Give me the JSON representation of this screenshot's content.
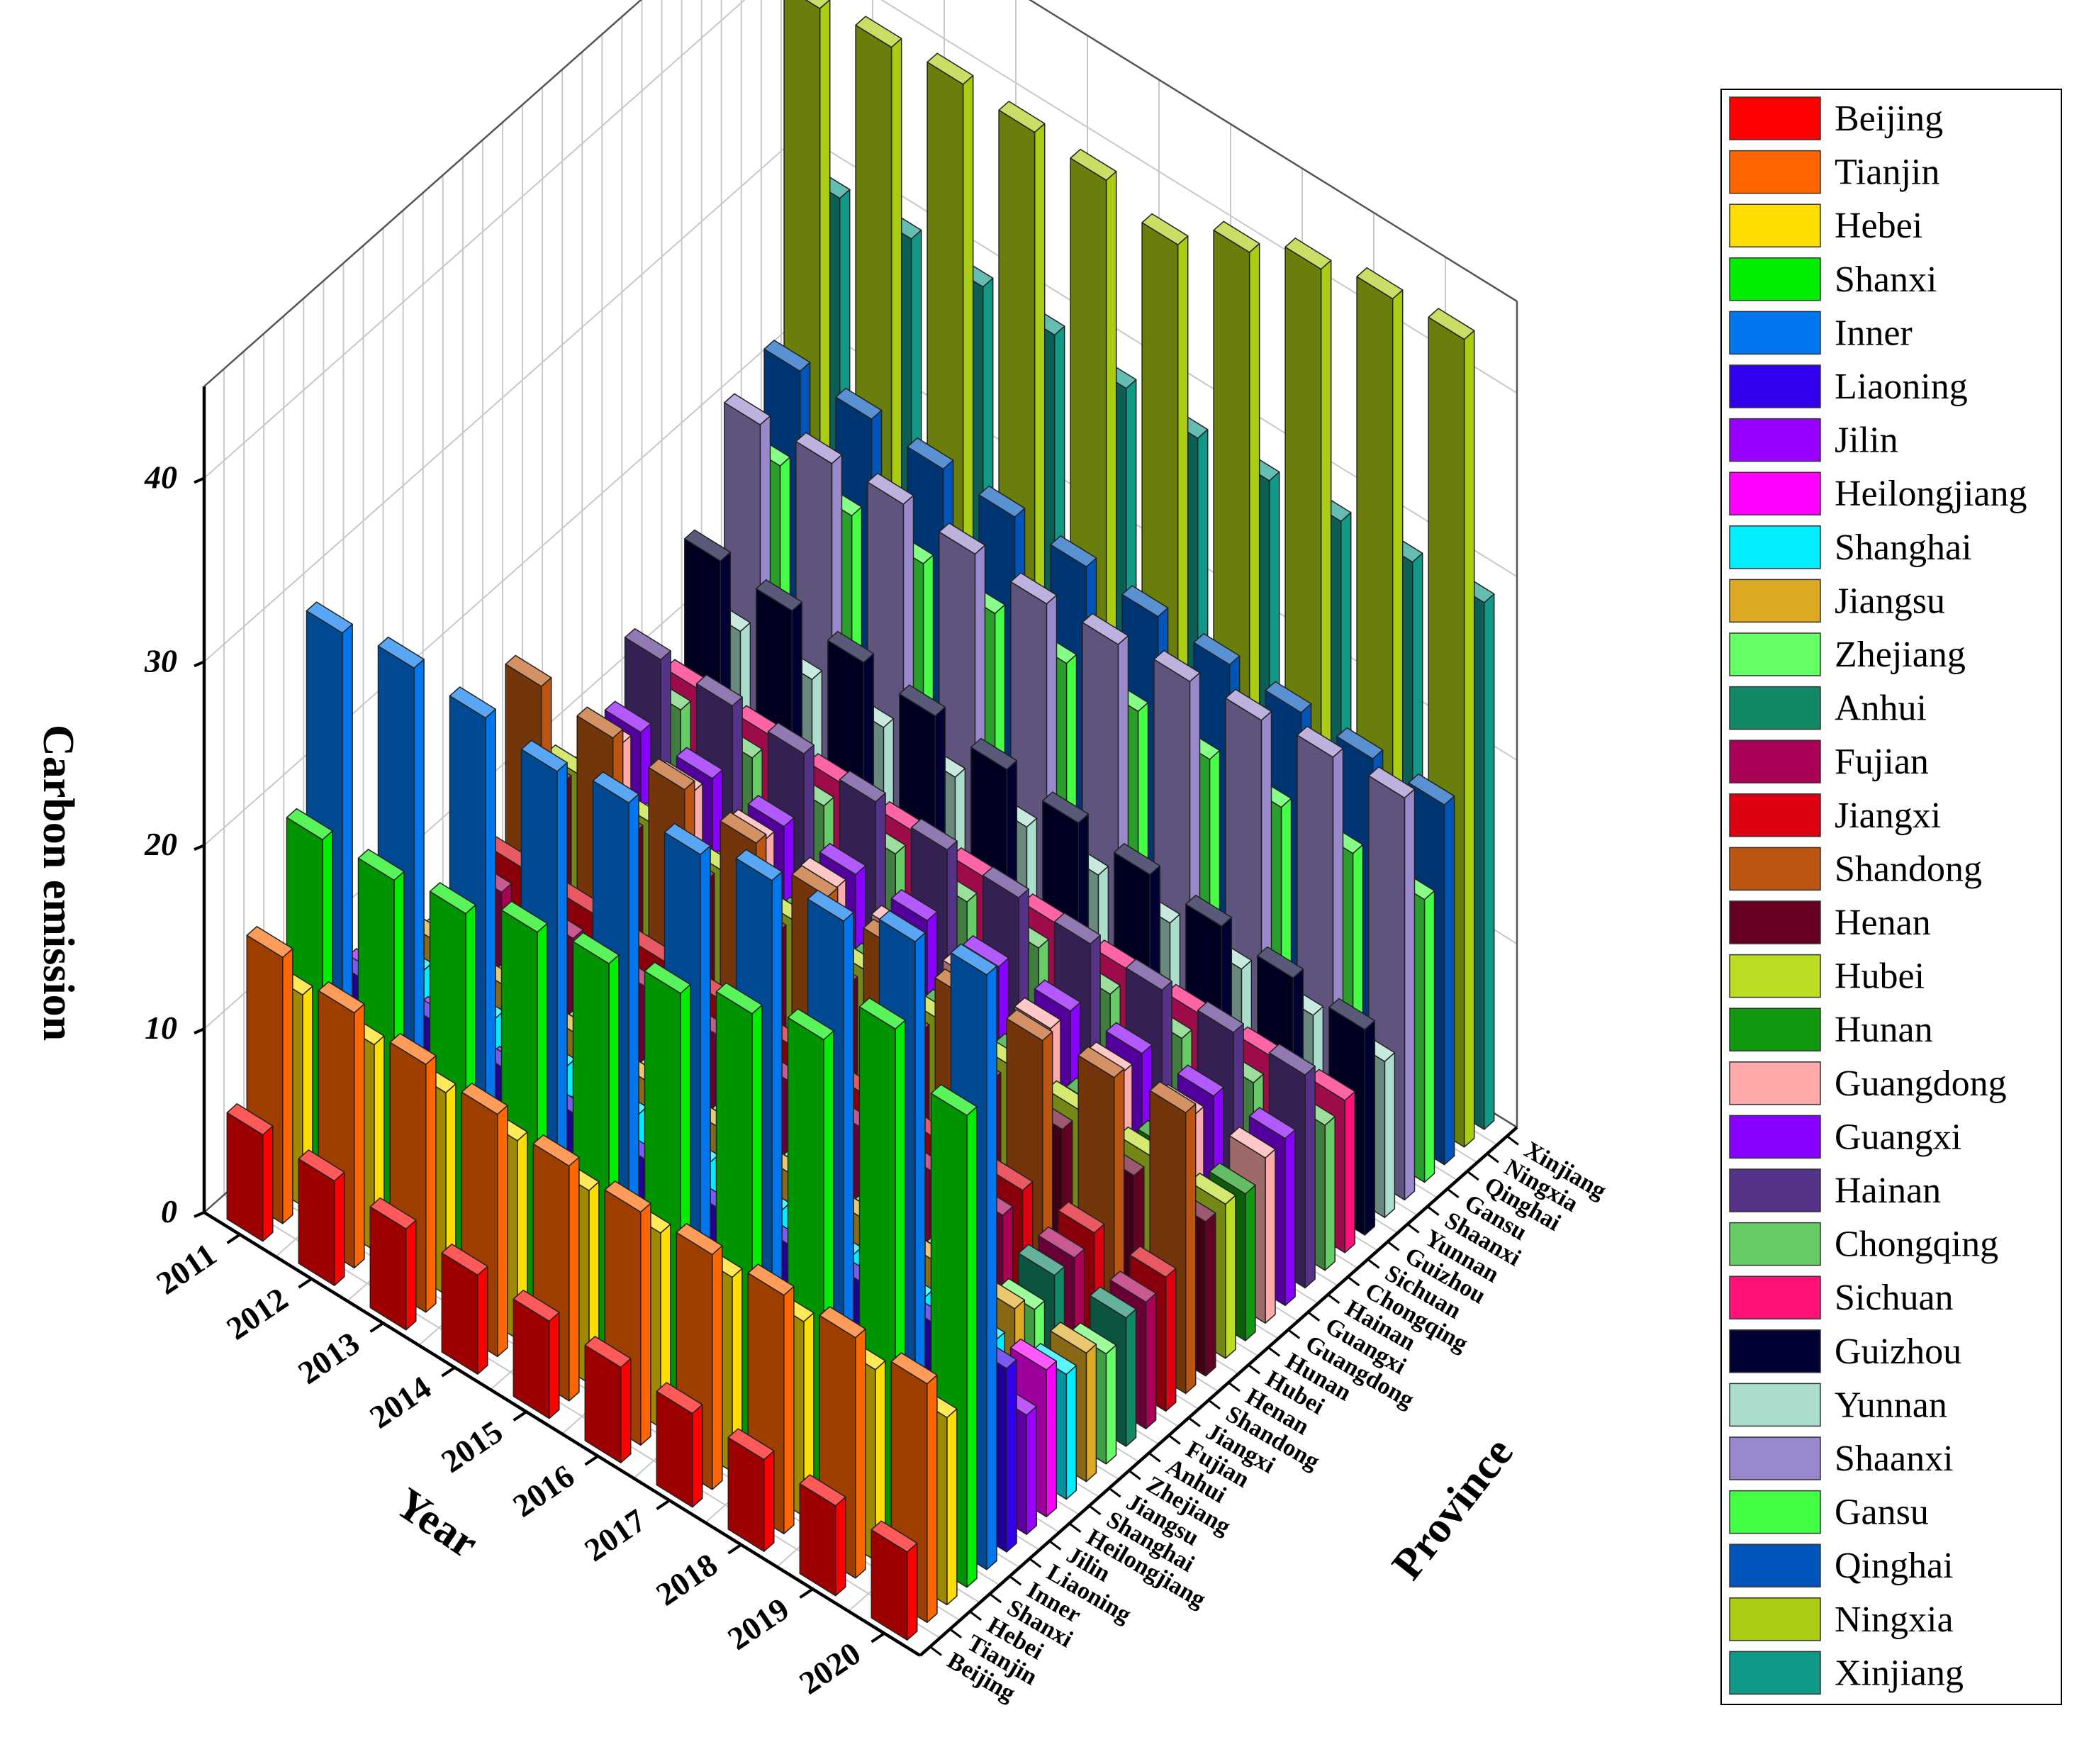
{
  "chart_data": {
    "type": "bar3d",
    "ylabel": "Carbon emission",
    "xlabel": "Year",
    "zlabel": "Province",
    "ylim": [
      0,
      45
    ],
    "yticks": [
      0,
      10,
      20,
      30,
      40
    ],
    "grid": true,
    "legend_position": "right",
    "years": [
      "2011",
      "2012",
      "2013",
      "2014",
      "2015",
      "2016",
      "2017",
      "2018",
      "2019",
      "2020"
    ],
    "provinces": [
      "Beijing",
      "Tianjin",
      "Hebei",
      "Shanxi",
      "Inner",
      "Liaoning",
      "Jilin",
      "Heilongjiang",
      "Shanghai",
      "Jiangsu",
      "Zhejiang",
      "Anhui",
      "Fujian",
      "Jiangxi",
      "Shandong",
      "Henan",
      "Hubei",
      "Hunan",
      "Guangdong",
      "Guangxi",
      "Hainan",
      "Chongqing",
      "Sichuan",
      "Guizhou",
      "Yunnan",
      "Shaanxi",
      "Gansu",
      "Qinghai",
      "Ningxia",
      "Xinjiang"
    ],
    "colors": [
      "#ff0000",
      "#ff6600",
      "#ffdd00",
      "#00ee00",
      "#0077ee",
      "#3300ee",
      "#9900ff",
      "#ff00ff",
      "#00eeff",
      "#ddaa22",
      "#66ff66",
      "#118866",
      "#aa0055",
      "#dd0011",
      "#bb5511",
      "#660022",
      "#bbdd22",
      "#119911",
      "#ffaaaa",
      "#8800ff",
      "#553388",
      "#66cc66",
      "#ff1177",
      "#000033",
      "#aaddcc",
      "#9988cc",
      "#44ff44",
      "#0055bb",
      "#aacc11",
      "#119988"
    ],
    "series": [
      {
        "name": "Beijing",
        "values": [
          5.8,
          5.7,
          5.5,
          5.4,
          5.3,
          5.2,
          5.1,
          5.0,
          4.9,
          4.8
        ]
      },
      {
        "name": "Tianjin",
        "values": [
          14.5,
          13.9,
          13.5,
          13.2,
          12.8,
          12.7,
          12.8,
          13.0,
          13.1,
          13.0
        ]
      },
      {
        "name": "Hebei",
        "values": [
          11.5,
          11.2,
          11.0,
          10.8,
          10.5,
          10.6,
          10.6,
          10.6,
          10.4,
          10.2
        ]
      },
      {
        "name": "Shanxi",
        "values": [
          19.0,
          19.2,
          19.8,
          21.2,
          21.9,
          22.7,
          24.0,
          25.0,
          28.0,
          25.7
        ]
      },
      {
        "name": "Inner",
        "values": [
          29.3,
          29.8,
          29.5,
          29.0,
          29.7,
          29.3,
          30.3,
          30.5,
          31.8,
          32.4
        ]
      },
      {
        "name": "Liaoning",
        "values": [
          9.5,
          9.6,
          9.4,
          9.3,
          9.2,
          9.0,
          9.4,
          9.8,
          10.0,
          10.0
        ]
      },
      {
        "name": "Jilin",
        "values": [
          8.5,
          8.3,
          8.0,
          7.7,
          7.4,
          7.1,
          6.9,
          6.8,
          6.6,
          6.5
        ]
      },
      {
        "name": "Heilongjiang",
        "values": [
          8.0,
          7.9,
          7.8,
          7.6,
          7.4,
          7.3,
          7.2,
          7.4,
          7.5,
          8.0
        ]
      },
      {
        "name": "Shanghai",
        "values": [
          7.0,
          6.8,
          6.6,
          6.4,
          6.2,
          6.0,
          6.0,
          6.1,
          6.2,
          6.8
        ]
      },
      {
        "name": "Jiangsu",
        "values": [
          7.5,
          7.4,
          7.2,
          7.0,
          6.9,
          6.8,
          6.8,
          6.9,
          7.0,
          7.0
        ]
      },
      {
        "name": "Zhejiang",
        "values": [
          6.6,
          6.5,
          6.4,
          6.2,
          6.1,
          6.0,
          6.0,
          6.1,
          6.0,
          6.0
        ]
      },
      {
        "name": "Anhui",
        "values": [
          7.3,
          7.2,
          7.1,
          7.0,
          6.9,
          6.8,
          6.8,
          6.9,
          6.9,
          7.0
        ]
      },
      {
        "name": "Fujian",
        "values": [
          7.5,
          7.4,
          7.2,
          7.0,
          6.9,
          6.8,
          6.8,
          6.8,
          6.9,
          6.9
        ]
      },
      {
        "name": "Jiangxi",
        "values": [
          7.9,
          7.8,
          7.6,
          7.4,
          7.3,
          7.1,
          7.1,
          7.2,
          7.3,
          7.3
        ]
      },
      {
        "name": "Shandong",
        "values": [
          16.8,
          16.4,
          16.0,
          15.5,
          15.0,
          14.5,
          14.2,
          14.4,
          14.8,
          15.3
        ]
      },
      {
        "name": "Henan",
        "values": [
          10.5,
          10.2,
          10.0,
          9.6,
          9.2,
          9.0,
          8.8,
          8.6,
          8.5,
          8.4
        ]
      },
      {
        "name": "Hubei",
        "values": [
          10.0,
          9.8,
          9.6,
          9.3,
          9.0,
          8.8,
          8.7,
          8.6,
          8.5,
          8.4
        ]
      },
      {
        "name": "Hunan",
        "values": [
          8.4,
          8.3,
          8.1,
          8.0,
          7.9,
          7.8,
          7.8,
          7.8,
          7.9,
          8.0
        ]
      },
      {
        "name": "Guangdong",
        "values": [
          9.8,
          9.6,
          9.4,
          9.2,
          9.0,
          8.9,
          8.8,
          8.8,
          8.9,
          9.0
        ]
      },
      {
        "name": "Guangxi",
        "values": [
          9.5,
          9.4,
          9.2,
          9.0,
          8.9,
          8.8,
          8.8,
          8.9,
          9.0,
          9.1
        ]
      },
      {
        "name": "Hainan",
        "values": [
          12.5,
          12.4,
          12.2,
          12.0,
          11.8,
          11.6,
          11.5,
          11.4,
          11.5,
          11.6
        ]
      },
      {
        "name": "Chongqing",
        "values": [
          8.8,
          8.6,
          8.4,
          8.2,
          8.0,
          7.9,
          7.8,
          7.8,
          7.8,
          7.9
        ]
      },
      {
        "name": "Sichuan",
        "values": [
          8.9,
          8.8,
          8.6,
          8.4,
          8.3,
          8.2,
          8.1,
          8.1,
          8.2,
          8.3
        ]
      },
      {
        "name": "Guizhou",
        "values": [
          15.0,
          14.7,
          14.3,
          13.8,
          13.3,
          12.8,
          12.4,
          12.0,
          11.6,
          11.2
        ]
      },
      {
        "name": "Yunnan",
        "values": [
          10.2,
          10.0,
          9.8,
          9.5,
          9.2,
          9.0,
          8.8,
          8.7,
          8.6,
          8.5
        ]
      },
      {
        "name": "Shaanxi",
        "values": [
          20.5,
          20.8,
          21.0,
          20.7,
          20.4,
          20.6,
          21.0,
          21.3,
          21.7,
          21.9
        ]
      },
      {
        "name": "Gansu",
        "values": [
          17.3,
          17.0,
          16.8,
          16.5,
          16.2,
          16.0,
          15.8,
          15.6,
          15.5,
          15.4
        ]
      },
      {
        "name": "Qinghai",
        "values": [
          21.5,
          21.3,
          21.0,
          20.8,
          20.5,
          20.2,
          20.0,
          19.8,
          19.7,
          19.6
        ]
      },
      {
        "name": "Ningxia",
        "values": [
          40.3,
          40.6,
          41.0,
          40.8,
          40.6,
          39.5,
          41.5,
          43.0,
          43.8,
          44.0
        ]
      },
      {
        "name": "Xinjiang",
        "values": [
          29.0,
          29.2,
          29.0,
          28.8,
          28.3,
          28.0,
          28.1,
          28.3,
          28.5,
          28.7
        ]
      }
    ]
  }
}
